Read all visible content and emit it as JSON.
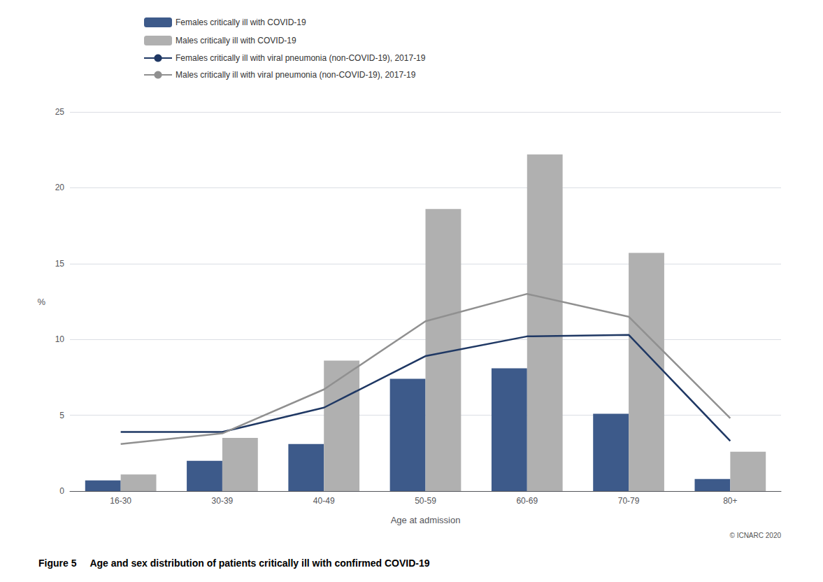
{
  "chart_data": {
    "type": "bar",
    "title": "Figure 5     Age and sex distribution of patients critically ill with confirmed COVID-19",
    "xlabel": "Age at admission",
    "ylabel": "%",
    "annotations": [
      "© ICNARC 2020"
    ],
    "categories": [
      "16-30",
      "30-39",
      "40-49",
      "50-59",
      "60-69",
      "70-79",
      "80+"
    ],
    "series": [
      {
        "name": "Females critically ill with COVID-19",
        "type": "bar",
        "color": "#3d5a8a",
        "values": [
          0.7,
          2.0,
          3.1,
          7.4,
          8.1,
          5.1,
          0.8
        ]
      },
      {
        "name": "Males critically ill with COVID-19",
        "type": "bar",
        "color": "#b0b0b0",
        "values": [
          1.1,
          3.5,
          8.6,
          18.6,
          22.2,
          15.7,
          2.6
        ]
      },
      {
        "name": "Females critically ill with viral pneumonia (non-COVID-19), 2017-19",
        "type": "line",
        "color": "#1f3864",
        "values": [
          3.9,
          3.9,
          5.5,
          8.9,
          10.2,
          10.3,
          3.3
        ]
      },
      {
        "name": "Males critically ill with viral pneumonia (non-COVID-19), 2017-19",
        "type": "line",
        "color": "#909090",
        "values": [
          3.1,
          3.8,
          6.7,
          11.2,
          13.0,
          11.5,
          4.8
        ]
      }
    ],
    "ylim": [
      0,
      25
    ],
    "yticks": [
      0,
      5,
      10,
      15,
      20,
      25
    ],
    "grid": true,
    "legend": "upper left"
  }
}
